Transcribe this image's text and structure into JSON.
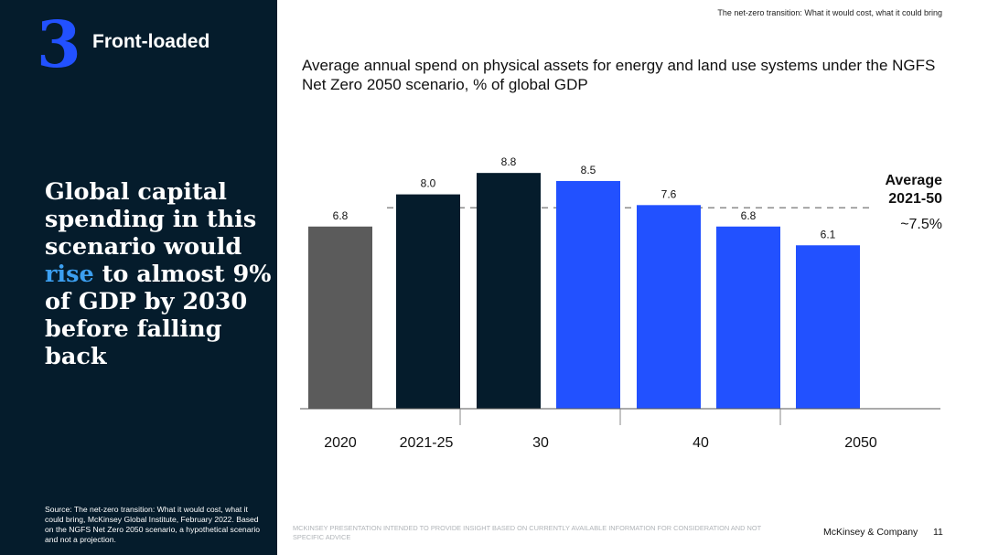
{
  "header_note": "The net-zero transition: What it would cost, what it could bring",
  "section": {
    "number": "3",
    "title": "Front-loaded"
  },
  "headline": {
    "before": "Global capital spending in this scenario would",
    "highlight": "rise",
    "after": "to almost 9% of GDP by 2030 before falling back"
  },
  "source": "Source: The net-zero transition: What it would cost, what it could bring, McKinsey Global Institute, February 2022. Based on the NGFS Net Zero 2050 scenario, a hypothetical scenario and not a projection.",
  "footer": {
    "disclaimer": "MCKINSEY PRESENTATION INTENDED TO PROVIDE INSIGHT BASED ON CURRENTLY AVAILABLE INFORMATION FOR CONSIDERATION AND NOT SPECIFIC ADVICE",
    "brand": "McKinsey & Company",
    "page": "11"
  },
  "colors": {
    "navy": "#051c2c",
    "blue": "#2251ff",
    "gray": "#5b5b5b",
    "highlight": "#3c9ff0"
  },
  "chart_data": {
    "type": "bar",
    "title": "Average annual spend on physical assets for energy and land use systems under the NGFS Net Zero 2050 scenario, % of global GDP",
    "values": [
      6.8,
      8.0,
      8.8,
      8.5,
      7.6,
      6.8,
      6.1
    ],
    "bar_colors": [
      "#5b5b5b",
      "#051c2c",
      "#051c2c",
      "#2251ff",
      "#2251ff",
      "#2251ff",
      "#2251ff"
    ],
    "x_tick_labels": [
      "2020",
      "2021-25",
      "30",
      "40",
      "2050"
    ],
    "average": {
      "value": 7.5,
      "label_line1": "Average",
      "label_line2": "2021-50",
      "value_label": "~7.5%"
    }
  }
}
